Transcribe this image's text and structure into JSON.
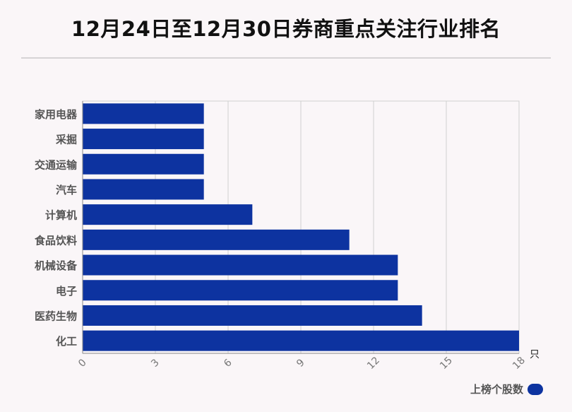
{
  "title": "12月24日至12月30日券商重点关注行业排名",
  "unit": "只",
  "colors": {
    "bar": "#0d33a0",
    "grid": "#d0d0d0",
    "axis": "#888888",
    "label": "#555555"
  },
  "chart_data": {
    "type": "bar",
    "orientation": "horizontal",
    "categories": [
      "家用电器",
      "采掘",
      "交通运输",
      "汽车",
      "计算机",
      "食品饮料",
      "机械设备",
      "电子",
      "医药生物",
      "化工"
    ],
    "series": [
      {
        "name": "上榜个股数",
        "values": [
          5,
          5,
          5,
          5,
          7,
          11,
          13,
          13,
          14,
          18
        ]
      }
    ],
    "xlim": [
      0,
      18
    ],
    "xticks": [
      "0",
      "3",
      "6",
      "9",
      "12",
      "15",
      "18"
    ],
    "grid": true,
    "legend_position": "bottom-right"
  }
}
